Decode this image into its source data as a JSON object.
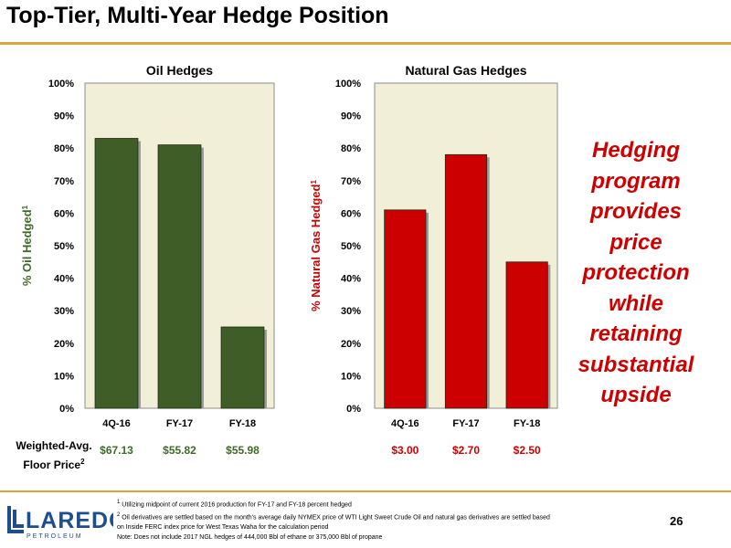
{
  "title": "Top-Tier, Multi-Year Hedge Position",
  "colors": {
    "accent": "#d9a441",
    "oil_bar": "#3f5e27",
    "gas_bar": "#cc0000",
    "plot_bg": "#f2efd9",
    "oil_axis_label": "#3f6b28",
    "gas_axis_label": "#cc0000"
  },
  "chart_data": [
    {
      "type": "bar",
      "title": "Oil Hedges",
      "ylabel": "% Oil Hedged",
      "ylabel_sup": "1",
      "categories": [
        "4Q-16",
        "FY-17",
        "FY-18"
      ],
      "values": [
        83,
        81,
        25
      ],
      "ylim": [
        0,
        100
      ],
      "yticks": [
        "0%",
        "10%",
        "20%",
        "30%",
        "40%",
        "50%",
        "60%",
        "70%",
        "80%",
        "90%",
        "100%"
      ],
      "floor_prices": [
        "$67.13",
        "$55.82",
        "$55.98"
      ],
      "grid": false
    },
    {
      "type": "bar",
      "title": "Natural Gas Hedges",
      "ylabel": "% Natural Gas Hedged",
      "ylabel_sup": "1",
      "categories": [
        "4Q-16",
        "FY-17",
        "FY-18"
      ],
      "values": [
        61,
        78,
        45
      ],
      "ylim": [
        0,
        100
      ],
      "yticks": [
        "0%",
        "10%",
        "20%",
        "30%",
        "40%",
        "50%",
        "60%",
        "70%",
        "80%",
        "90%",
        "100%"
      ],
      "floor_prices": [
        "$3.00",
        "$2.70",
        "$2.50"
      ],
      "grid": false
    }
  ],
  "callout": [
    "Hedging",
    "program",
    "provides price",
    "protection",
    "while",
    "retaining",
    "substantial",
    "upside"
  ],
  "floor_label": {
    "line1": "Weighted-Avg.",
    "line2": "Floor Price",
    "sup": "2"
  },
  "footnotes": [
    {
      "sup": "1",
      "text": " Utilizing midpoint of current 2016 production for FY-17 and FY-18 percent hedged"
    },
    {
      "sup": "2",
      "text": " Oil derivatives are settled based on the month's average daily NYMEX price of WTI Light Sweet Crude Oil and natural gas derivatives are settled based"
    },
    {
      "sup": "",
      "text": "on Inside FERC index price for West Texas Waha for the calculation period"
    },
    {
      "sup": "",
      "text": "Note: Does not include 2017 NGL hedges of 444,000 Bbl of ethane or 375,000 Bbl of propane"
    }
  ],
  "logo": {
    "name": "LAREDO",
    "sub": "PETROLEUM",
    "icon": "laredo-logo-icon"
  },
  "page_number": "26"
}
